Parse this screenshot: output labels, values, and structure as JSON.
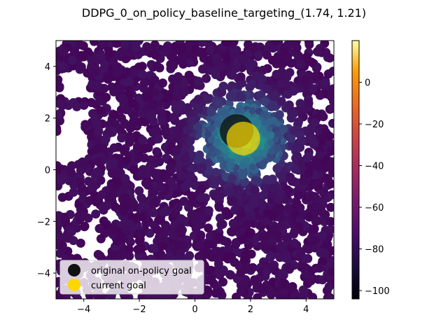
{
  "chart_data": {
    "type": "scatter",
    "title": "DDPG_0_on_policy_baseline_targeting_(1.74, 1.21)",
    "xlabel": "",
    "ylabel": "",
    "xlim": [
      -5,
      5
    ],
    "ylim": [
      -5,
      5
    ],
    "x_ticks": [
      -4,
      -2,
      0,
      2,
      4
    ],
    "y_ticks": [
      -4,
      -2,
      0,
      2,
      4
    ],
    "grid": false,
    "colormap": "inferno",
    "colorbar": {
      "range": [
        -104,
        20
      ],
      "ticks": [
        0,
        -20,
        -40,
        -60,
        -80,
        -100
      ]
    },
    "value_field": {
      "background_value": -76,
      "peak_value": 5,
      "peak_center": [
        1.74,
        1.21
      ],
      "falloff_radius": 1.6
    },
    "markers": [
      {
        "name": "original on-policy goal",
        "x": 1.5,
        "y": 1.5,
        "color": "#111111"
      },
      {
        "name": "current goal",
        "x": 1.74,
        "y": 1.21,
        "color": "#ffd700"
      }
    ],
    "legend": {
      "placement": "lower-left"
    }
  }
}
